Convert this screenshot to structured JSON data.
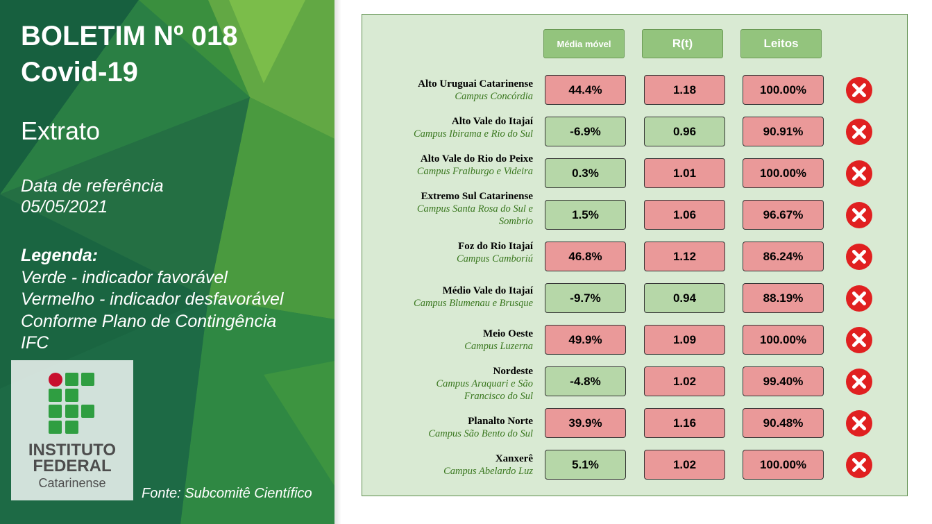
{
  "left": {
    "title_line1": "BOLETIM Nº 018",
    "title_line2": "Covid-19",
    "subtitle": "Extrato",
    "date_label": "Data de referência",
    "date_value": "05/05/2021",
    "legend_title": "Legenda:",
    "legend_lines": [
      "Verde - indicador favorável",
      "Vermelho - indicador desfavorável",
      "Conforme Plano de Contingência",
      "IFC"
    ],
    "logo_line1": "INSTITUTO",
    "logo_line2": "FEDERAL",
    "logo_line3": "Catarinense",
    "source": "Fonte: Subcomitê Científico"
  },
  "colors": {
    "favorable": "#b6d7a8",
    "unfavorable": "#ea9999",
    "header": "#93c47d",
    "panel": "#d9ead3",
    "status_icon": "#e02020"
  },
  "table": {
    "headers": [
      "Média móvel",
      "R(t)",
      "Leitos"
    ],
    "rows": [
      {
        "region": "Alto Uruguai Catarinense",
        "campus": [
          "Campus Concórdia"
        ],
        "media": "44.4%",
        "media_status": "red",
        "rt": "1.18",
        "rt_status": "red",
        "leitos": "100.00%",
        "leitos_status": "red",
        "status_icon": "x-circle-icon"
      },
      {
        "region": "Alto Vale do Itajaí",
        "campus": [
          "Campus Ibirama e Rio do Sul"
        ],
        "media": "-6.9%",
        "media_status": "green",
        "rt": "0.96",
        "rt_status": "green",
        "leitos": "90.91%",
        "leitos_status": "red",
        "status_icon": "x-circle-icon"
      },
      {
        "region": "Alto Vale do Rio do Peixe",
        "campus": [
          "Campus Fraiburgo e Videira"
        ],
        "media": "0.3%",
        "media_status": "green",
        "rt": "1.01",
        "rt_status": "red",
        "leitos": "100.00%",
        "leitos_status": "red",
        "status_icon": "x-circle-icon"
      },
      {
        "region": "Extremo Sul Catarinense",
        "campus": [
          "Campus Santa Rosa do Sul e",
          "Sombrio"
        ],
        "media": "1.5%",
        "media_status": "green",
        "rt": "1.06",
        "rt_status": "red",
        "leitos": "96.67%",
        "leitos_status": "red",
        "status_icon": "x-circle-icon"
      },
      {
        "region": "Foz do Rio Itajaí",
        "campus": [
          "Campus Camboriú"
        ],
        "media": "46.8%",
        "media_status": "red",
        "rt": "1.12",
        "rt_status": "red",
        "leitos": "86.24%",
        "leitos_status": "red",
        "status_icon": "x-circle-icon"
      },
      {
        "region": "Médio Vale do Itajaí",
        "campus": [
          "Campus Blumenau e Brusque"
        ],
        "media": "-9.7%",
        "media_status": "green",
        "rt": "0.94",
        "rt_status": "green",
        "leitos": "88.19%",
        "leitos_status": "red",
        "status_icon": "x-circle-icon"
      },
      {
        "region": "Meio Oeste",
        "campus": [
          "Campus Luzerna"
        ],
        "media": "49.9%",
        "media_status": "red",
        "rt": "1.09",
        "rt_status": "red",
        "leitos": "100.00%",
        "leitos_status": "red",
        "status_icon": "x-circle-icon"
      },
      {
        "region": "Nordeste",
        "campus": [
          "Campus Araquari e São",
          "Francisco do Sul"
        ],
        "media": "-4.8%",
        "media_status": "green",
        "rt": "1.02",
        "rt_status": "red",
        "leitos": "99.40%",
        "leitos_status": "red",
        "status_icon": "x-circle-icon"
      },
      {
        "region": "Planalto Norte",
        "campus": [
          "Campus São Bento do Sul"
        ],
        "media": "39.9%",
        "media_status": "red",
        "rt": "1.16",
        "rt_status": "red",
        "leitos": "90.48%",
        "leitos_status": "red",
        "status_icon": "x-circle-icon"
      },
      {
        "region": "Xanxerê",
        "campus": [
          "Campus Abelardo Luz"
        ],
        "media": "5.1%",
        "media_status": "green",
        "rt": "1.02",
        "rt_status": "red",
        "leitos": "100.00%",
        "leitos_status": "red",
        "status_icon": "x-circle-icon"
      }
    ]
  }
}
